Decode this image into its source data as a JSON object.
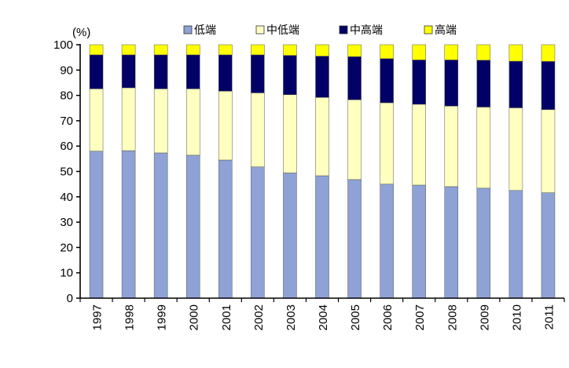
{
  "chart_data": {
    "type": "bar",
    "stacked": true,
    "title": "",
    "xlabel": "",
    "ylabel": "(%)",
    "ylim": [
      0,
      100
    ],
    "yticks": [
      0,
      10,
      20,
      30,
      40,
      50,
      60,
      70,
      80,
      90,
      100
    ],
    "grid": false,
    "legend_position": "top",
    "categories": [
      "1997",
      "1998",
      "1999",
      "2000",
      "2001",
      "2002",
      "2003",
      "2004",
      "2005",
      "2006",
      "2007",
      "2008",
      "2009",
      "2010",
      "2011"
    ],
    "series": [
      {
        "name": "低端",
        "color": "#8EA2D6",
        "values": [
          58.0,
          58.2,
          57.3,
          56.4,
          54.5,
          51.8,
          49.4,
          48.3,
          46.8,
          45.0,
          44.6,
          44.0,
          43.4,
          42.5,
          41.6
        ]
      },
      {
        "name": "中低端",
        "color": "#FFFFC0",
        "values": [
          24.6,
          24.8,
          25.3,
          26.2,
          27.2,
          29.2,
          30.9,
          30.9,
          31.5,
          32.1,
          31.9,
          31.8,
          32.0,
          32.6,
          32.8
        ]
      },
      {
        "name": "中高端",
        "color": "#000066",
        "values": [
          13.4,
          13.0,
          13.4,
          13.4,
          14.3,
          15.0,
          15.5,
          16.3,
          17.0,
          17.4,
          17.5,
          18.2,
          18.5,
          18.4,
          19.0
        ]
      },
      {
        "name": "高端",
        "color": "#FFFF00",
        "values": [
          4.0,
          4.0,
          4.0,
          4.0,
          4.0,
          4.0,
          4.2,
          4.5,
          4.7,
          5.5,
          6.0,
          6.0,
          6.1,
          6.5,
          6.6
        ]
      }
    ]
  }
}
